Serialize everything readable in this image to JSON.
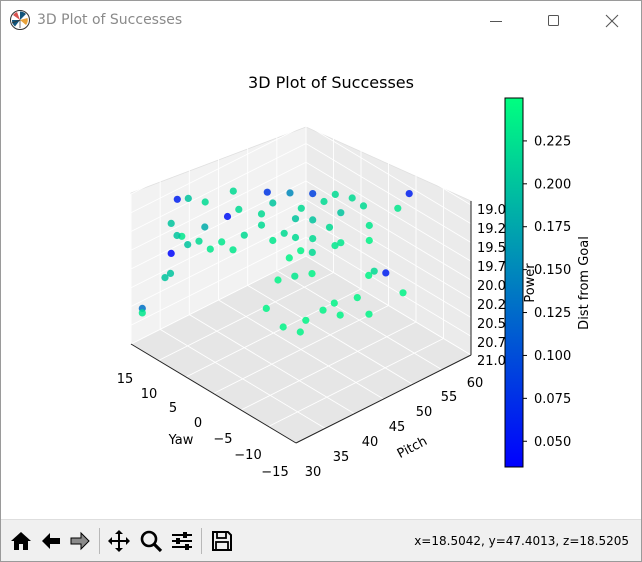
{
  "window": {
    "title": "3D Plot of Successes",
    "controls": [
      "minimize",
      "maximize",
      "close"
    ]
  },
  "toolbar": {
    "buttons": [
      {
        "name": "home-icon",
        "tooltip": ""
      },
      {
        "name": "back-arrow-icon",
        "tooltip": ""
      },
      {
        "name": "forward-arrow-icon",
        "tooltip": ""
      },
      {
        "name": "pan-icon",
        "tooltip": ""
      },
      {
        "name": "zoom-icon",
        "tooltip": ""
      },
      {
        "name": "configure-subplots-icon",
        "tooltip": ""
      },
      {
        "name": "save-icon",
        "tooltip": ""
      }
    ],
    "coordinates": "x=18.5042, y=47.4013, z=18.5205"
  },
  "chart_data": {
    "type": "scatter",
    "title": "3D Plot of Successes",
    "xlabel": "Yaw",
    "ylabel": "Pitch",
    "zlabel": "Power",
    "x_ticks": [
      "15",
      "10",
      "5",
      "0",
      "−5",
      "−10",
      "−15"
    ],
    "y_ticks": [
      "30",
      "35",
      "40",
      "45",
      "50",
      "55",
      "60"
    ],
    "z_ticks": [
      "19.0",
      "19.2",
      "19.5",
      "19.7",
      "20.0",
      "20.2",
      "20.5",
      "20.7",
      "21.0"
    ],
    "xlim": [
      15,
      -15
    ],
    "ylim": [
      30,
      60
    ],
    "zlim": [
      21.0,
      19.0
    ],
    "colorbar": {
      "label": "Dist from Goal",
      "colormap": "winter",
      "range": [
        0.035,
        0.25
      ],
      "ticks": [
        "0.050",
        "0.075",
        "0.100",
        "0.125",
        "0.150",
        "0.175",
        "0.200",
        "0.225"
      ],
      "low_color": "#0000ff",
      "high_color": "#00ff80"
    },
    "grid": true,
    "pane_color": "#f2f2f2",
    "points": [
      {
        "x": 14.0,
        "y": 31.0,
        "z": 20.52,
        "c": 0.13
      },
      {
        "x": 14.0,
        "y": 31.0,
        "z": 20.58,
        "c": 0.23
      },
      {
        "x": 12.0,
        "y": 33.0,
        "z": 20.1,
        "c": 0.2
      },
      {
        "x": 13.0,
        "y": 35.0,
        "z": 19.5,
        "c": 0.2
      },
      {
        "x": 13.0,
        "y": 35.0,
        "z": 19.9,
        "c": 0.04
      },
      {
        "x": 11.0,
        "y": 33.0,
        "z": 20.0,
        "c": 0.2
      },
      {
        "x": 10.0,
        "y": 34.0,
        "z": 19.5,
        "c": 0.23
      },
      {
        "x": 14.0,
        "y": 37.0,
        "z": 19.3,
        "c": 0.06
      },
      {
        "x": 12.0,
        "y": 37.0,
        "z": 19.2,
        "c": 0.2
      },
      {
        "x": 13.0,
        "y": 36.0,
        "z": 19.7,
        "c": 0.2
      },
      {
        "x": 10.0,
        "y": 35.0,
        "z": 19.65,
        "c": 0.2
      },
      {
        "x": 10.0,
        "y": 38.0,
        "z": 19.2,
        "c": 0.22
      },
      {
        "x": 9.0,
        "y": 36.0,
        "z": 19.6,
        "c": 0.22
      },
      {
        "x": 8.0,
        "y": 37.0,
        "z": 19.7,
        "c": 0.23
      },
      {
        "x": 7.0,
        "y": 39.0,
        "z": 19.3,
        "c": 0.05
      },
      {
        "x": 9.0,
        "y": 37.0,
        "z": 19.45,
        "c": 0.18
      },
      {
        "x": 7.0,
        "y": 38.0,
        "z": 19.6,
        "c": 0.23
      },
      {
        "x": 6.0,
        "y": 40.0,
        "z": 19.2,
        "c": 0.22
      },
      {
        "x": 7.0,
        "y": 40.0,
        "z": 19.0,
        "c": 0.22
      },
      {
        "x": 4.0,
        "y": 43.0,
        "z": 19.0,
        "c": 0.08
      },
      {
        "x": 5.0,
        "y": 40.0,
        "z": 19.5,
        "c": 0.22
      },
      {
        "x": 3.0,
        "y": 43.0,
        "z": 19.1,
        "c": 0.2
      },
      {
        "x": 6.0,
        "y": 39.0,
        "z": 19.7,
        "c": 0.23
      },
      {
        "x": 4.0,
        "y": 42.0,
        "z": 19.25,
        "c": 0.22
      },
      {
        "x": 2.0,
        "y": 45.0,
        "z": 19.0,
        "c": 0.15
      },
      {
        "x": 4.0,
        "y": 42.0,
        "z": 19.4,
        "c": 0.22
      },
      {
        "x": 1.0,
        "y": 45.0,
        "z": 19.3,
        "c": 0.2
      },
      {
        "x": 2.0,
        "y": 44.0,
        "z": 19.5,
        "c": 0.22
      },
      {
        "x": 3.0,
        "y": 43.0,
        "z": 19.6,
        "c": 0.23
      },
      {
        "x": 0.0,
        "y": 47.0,
        "z": 19.0,
        "c": 0.09
      },
      {
        "x": 1.0,
        "y": 46.0,
        "z": 19.2,
        "c": 0.22
      },
      {
        "x": -1.0,
        "y": 48.0,
        "z": 19.1,
        "c": 0.22
      },
      {
        "x": 0.0,
        "y": 47.0,
        "z": 19.35,
        "c": 0.2
      },
      {
        "x": 1.0,
        "y": 45.0,
        "z": 19.55,
        "c": 0.22
      },
      {
        "x": -2.0,
        "y": 49.0,
        "z": 19.0,
        "c": 0.22
      },
      {
        "x": 0.0,
        "y": 47.0,
        "z": 19.6,
        "c": 0.22
      },
      {
        "x": -1.0,
        "y": 46.0,
        "z": 19.7,
        "c": 0.22
      },
      {
        "x": -2.0,
        "y": 48.0,
        "z": 19.4,
        "c": 0.22
      },
      {
        "x": -3.0,
        "y": 49.0,
        "z": 19.2,
        "c": 0.2
      },
      {
        "x": -4.0,
        "y": 50.0,
        "z": 19.0,
        "c": 0.22
      },
      {
        "x": -3.0,
        "y": 48.0,
        "z": 19.6,
        "c": 0.23
      },
      {
        "x": -5.0,
        "y": 51.0,
        "z": 19.1,
        "c": 0.22
      },
      {
        "x": -1.0,
        "y": 43.0,
        "z": 19.9,
        "c": 0.23
      },
      {
        "x": 1.0,
        "y": 42.0,
        "z": 20.0,
        "c": 0.24
      },
      {
        "x": -2.0,
        "y": 45.0,
        "z": 19.9,
        "c": 0.24
      },
      {
        "x": 1.0,
        "y": 40.0,
        "z": 20.3,
        "c": 0.24
      },
      {
        "x": -1.0,
        "y": 41.0,
        "z": 20.5,
        "c": 0.24
      },
      {
        "x": -3.0,
        "y": 43.0,
        "z": 20.4,
        "c": 0.24
      },
      {
        "x": -4.0,
        "y": 45.0,
        "z": 20.3,
        "c": 0.24
      },
      {
        "x": -5.0,
        "y": 46.0,
        "z": 20.2,
        "c": 0.24
      },
      {
        "x": -2.0,
        "y": 43.0,
        "z": 20.6,
        "c": 0.24
      },
      {
        "x": -5.0,
        "y": 47.0,
        "z": 20.4,
        "c": 0.24
      },
      {
        "x": -6.0,
        "y": 49.0,
        "z": 20.2,
        "c": 0.24
      },
      {
        "x": -7.0,
        "y": 50.0,
        "z": 19.9,
        "c": 0.24
      },
      {
        "x": -8.0,
        "y": 50.0,
        "z": 19.8,
        "c": 0.22
      },
      {
        "x": -8.0,
        "y": 52.0,
        "z": 19.9,
        "c": 0.06
      },
      {
        "x": -9.0,
        "y": 54.0,
        "z": 20.2,
        "c": 0.24
      },
      {
        "x": -6.0,
        "y": 51.0,
        "z": 20.5,
        "c": 0.24
      },
      {
        "x": -1.0,
        "y": 44.0,
        "z": 19.6,
        "c": 0.24
      },
      {
        "x": 0.0,
        "y": 43.0,
        "z": 19.7,
        "c": 0.24
      },
      {
        "x": -8.0,
        "y": 56.0,
        "z": 19.0,
        "c": 0.06
      },
      {
        "x": -7.0,
        "y": 55.0,
        "z": 19.2,
        "c": 0.23
      },
      {
        "x": -5.0,
        "y": 52.0,
        "z": 19.4,
        "c": 0.23
      },
      {
        "x": -5.0,
        "y": 52.0,
        "z": 19.6,
        "c": 0.24
      },
      {
        "x": -3.0,
        "y": 49.0,
        "z": 19.6,
        "c": 0.23
      }
    ]
  }
}
